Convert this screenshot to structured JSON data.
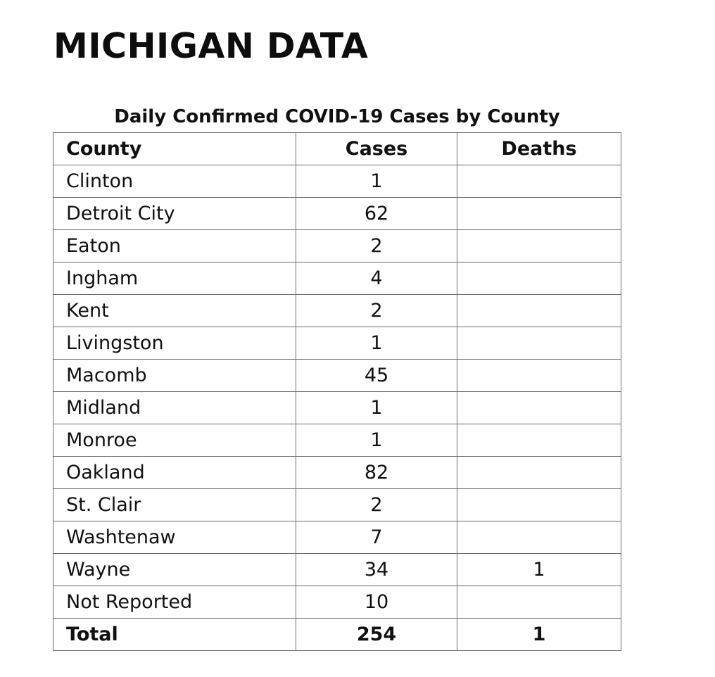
{
  "page": {
    "title": "MICHIGAN DATA"
  },
  "table": {
    "caption": "Daily Confirmed COVID-19 Cases by County",
    "headers": {
      "county": "County",
      "cases": "Cases",
      "deaths": "Deaths"
    },
    "rows": [
      {
        "county": "Clinton",
        "cases": "1",
        "deaths": ""
      },
      {
        "county": "Detroit City",
        "cases": "62",
        "deaths": ""
      },
      {
        "county": "Eaton",
        "cases": "2",
        "deaths": ""
      },
      {
        "county": "Ingham",
        "cases": "4",
        "deaths": ""
      },
      {
        "county": "Kent",
        "cases": "2",
        "deaths": ""
      },
      {
        "county": "Livingston",
        "cases": "1",
        "deaths": ""
      },
      {
        "county": "Macomb",
        "cases": "45",
        "deaths": ""
      },
      {
        "county": "Midland",
        "cases": "1",
        "deaths": ""
      },
      {
        "county": "Monroe",
        "cases": "1",
        "deaths": ""
      },
      {
        "county": "Oakland",
        "cases": "82",
        "deaths": ""
      },
      {
        "county": "St. Clair",
        "cases": "2",
        "deaths": ""
      },
      {
        "county": "Washtenaw",
        "cases": "7",
        "deaths": ""
      },
      {
        "county": "Wayne",
        "cases": "34",
        "deaths": "1"
      },
      {
        "county": "Not Reported",
        "cases": "10",
        "deaths": ""
      }
    ],
    "total": {
      "label": "Total",
      "cases": "254",
      "deaths": "1"
    }
  },
  "colors": {
    "text": "#111111",
    "border": "#6b6b6b",
    "background": "#ffffff"
  }
}
